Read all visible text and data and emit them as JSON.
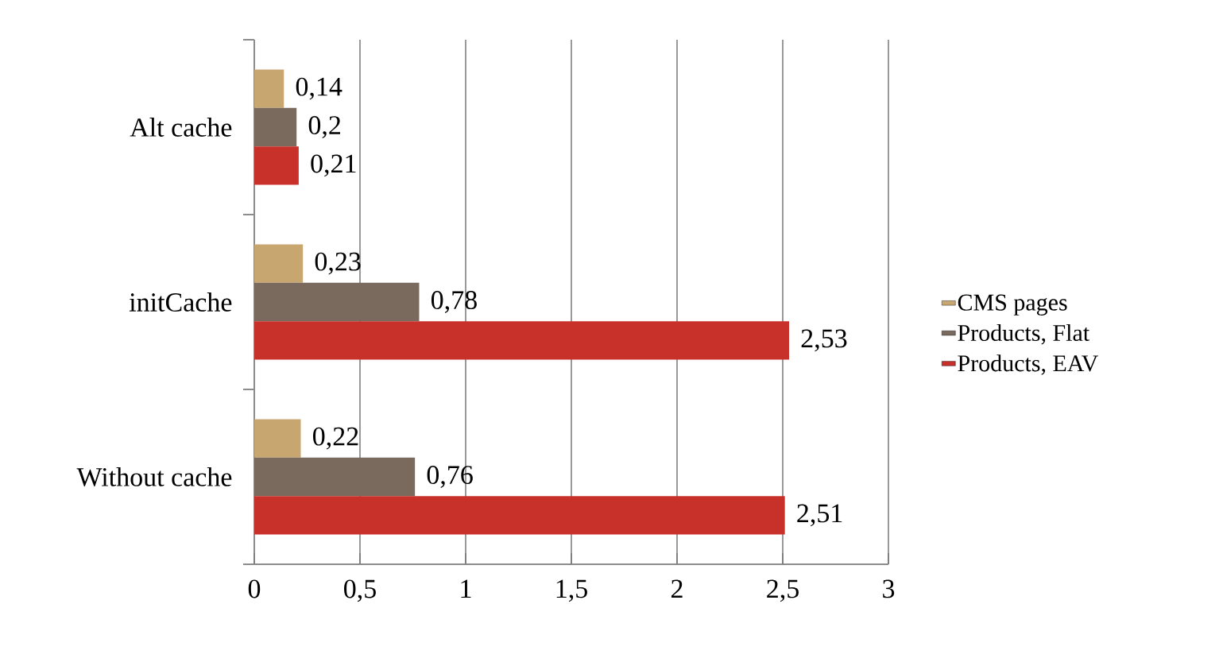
{
  "chart_data": {
    "type": "bar",
    "orientation": "horizontal",
    "categories": [
      "Alt cache",
      "initCache",
      "Without cache"
    ],
    "series": [
      {
        "name": "CMS pages",
        "color": "#c8a670",
        "values": [
          0.14,
          0.23,
          0.22
        ],
        "value_labels": [
          "0,14",
          "0,23",
          "0,22"
        ]
      },
      {
        "name": "Products, Flat",
        "color": "#7a6a5e",
        "values": [
          0.2,
          0.78,
          0.76
        ],
        "value_labels": [
          "0,2",
          "0,78",
          "0,76"
        ]
      },
      {
        "name": "Products, EAV",
        "color": "#c8302a",
        "values": [
          0.21,
          2.53,
          2.51
        ],
        "value_labels": [
          "0,21",
          "2,53",
          "2,51"
        ]
      }
    ],
    "xlim": [
      0,
      3
    ],
    "xticks": [
      0,
      {
        "value": 0.5,
        "label": "0,5"
      },
      1,
      {
        "value": 1.5,
        "label": "1,5"
      },
      2,
      {
        "value": 2.5,
        "label": "2,5"
      },
      3
    ],
    "grid": "x",
    "legend": "right"
  }
}
